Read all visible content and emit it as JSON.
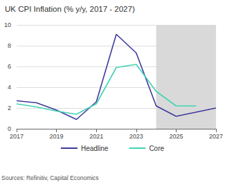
{
  "chart_data": {
    "type": "line",
    "title": "UK CPI Inflation (% y/y, 2017 - 2027)",
    "x": [
      2017,
      2018,
      2019,
      2020,
      2021,
      2022,
      2023,
      2024,
      2025,
      2026,
      2027
    ],
    "series": [
      {
        "name": "Headline",
        "color": "#3d3a9c",
        "values": [
          2.7,
          2.5,
          1.8,
          0.9,
          2.6,
          9.1,
          7.3,
          2.2,
          1.2,
          1.6,
          2.0
        ]
      },
      {
        "name": "Core",
        "color": "#40d4b4",
        "values": [
          2.4,
          2.1,
          1.7,
          1.4,
          2.4,
          5.9,
          6.2,
          3.6,
          2.2,
          2.2,
          null
        ]
      }
    ],
    "forecast_span": [
      2024,
      2027
    ],
    "xlim": [
      2017,
      2027
    ],
    "xticks": [
      2017,
      2019,
      2021,
      2023,
      2025,
      2027
    ],
    "ylim": [
      0,
      10
    ],
    "yticks": [
      0,
      2,
      4,
      6,
      8,
      10
    ],
    "grid": true,
    "legend": "bottom",
    "source": "Sources: Refinitiv, Capital Economics"
  }
}
